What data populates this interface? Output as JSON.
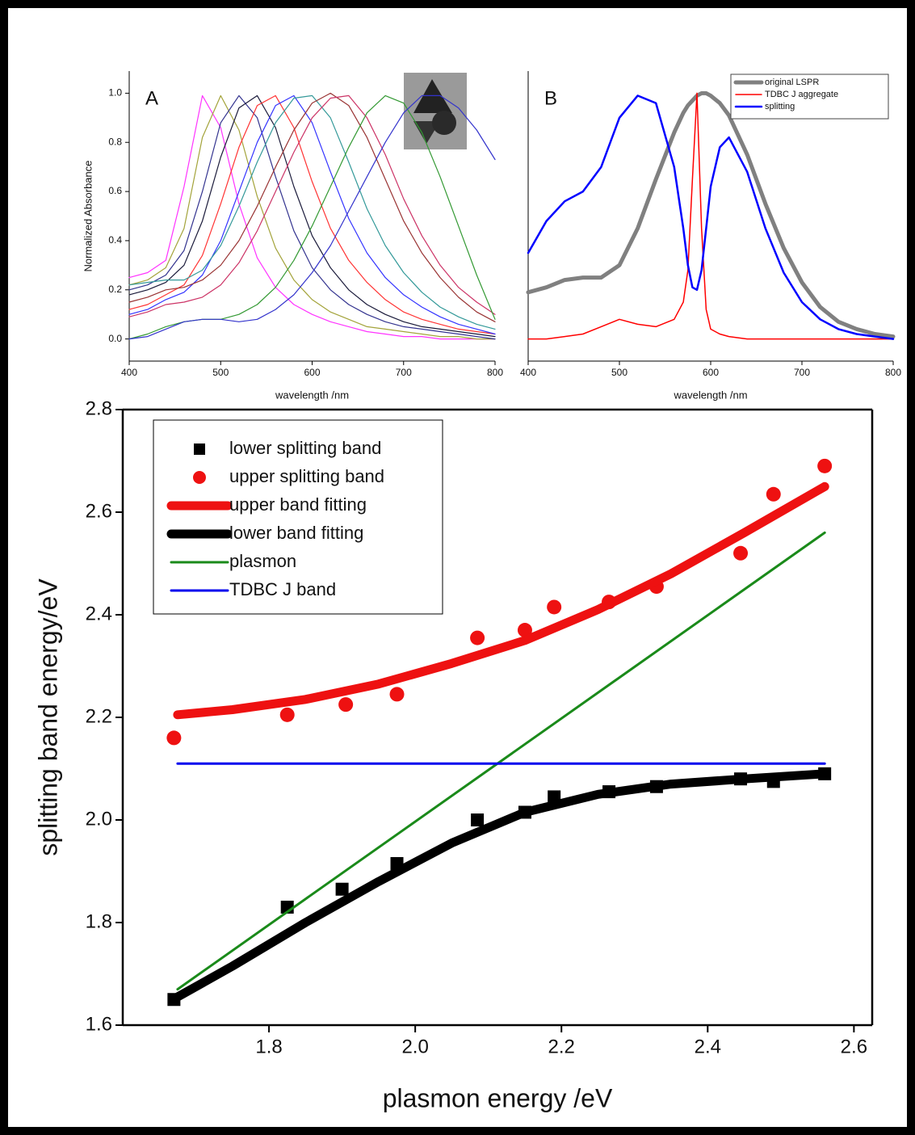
{
  "chart_data": [
    {
      "type": "line",
      "panel_label": "A",
      "xlabel": "wavelength /nm",
      "ylabel": "Normalized Absorbance",
      "x": [
        400,
        420,
        440,
        460,
        480,
        500,
        520,
        540,
        560,
        580,
        600,
        620,
        640,
        660,
        680,
        700,
        720,
        740,
        760,
        780,
        800
      ],
      "xlim": [
        400,
        800
      ],
      "xticks": [
        400,
        500,
        600,
        700,
        800
      ],
      "ylim": [
        -0.09,
        1.09
      ],
      "yticks": [
        {
          "value": 0,
          "label": "0.0"
        },
        0.2,
        0.4,
        0.6,
        0.8,
        {
          "value": 1,
          "label": "1.0"
        }
      ],
      "series": [
        {
          "color": "#ff33ff",
          "values": [
            0.25,
            0.27,
            0.32,
            0.62,
            0.99,
            0.86,
            0.55,
            0.33,
            0.21,
            0.14,
            0.1,
            0.07,
            0.05,
            0.03,
            0.02,
            0.01,
            0.01,
            0,
            0,
            0,
            0
          ]
        },
        {
          "color": "#a3a33a",
          "values": [
            0.22,
            0.24,
            0.29,
            0.45,
            0.82,
            0.99,
            0.85,
            0.58,
            0.37,
            0.24,
            0.16,
            0.11,
            0.08,
            0.05,
            0.04,
            0.03,
            0.02,
            0.01,
            0.01,
            0,
            0
          ]
        },
        {
          "color": "#33338f",
          "values": [
            0.2,
            0.22,
            0.26,
            0.36,
            0.6,
            0.88,
            0.99,
            0.9,
            0.66,
            0.44,
            0.29,
            0.2,
            0.14,
            0.1,
            0.07,
            0.05,
            0.04,
            0.03,
            0.02,
            0.01,
            0
          ]
        },
        {
          "color": "#1a1a3a",
          "values": [
            0.18,
            0.2,
            0.23,
            0.3,
            0.48,
            0.74,
            0.94,
            0.99,
            0.86,
            0.62,
            0.42,
            0.29,
            0.2,
            0.14,
            0.1,
            0.07,
            0.05,
            0.04,
            0.03,
            0.02,
            0.01
          ]
        },
        {
          "color": "#ff3333",
          "values": [
            0.12,
            0.14,
            0.18,
            0.22,
            0.34,
            0.55,
            0.78,
            0.95,
            0.99,
            0.86,
            0.64,
            0.45,
            0.32,
            0.23,
            0.16,
            0.11,
            0.08,
            0.06,
            0.04,
            0.03,
            0.02
          ]
        },
        {
          "color": "#3333ff",
          "values": [
            0.1,
            0.12,
            0.16,
            0.19,
            0.26,
            0.4,
            0.6,
            0.8,
            0.95,
            0.99,
            0.88,
            0.68,
            0.49,
            0.35,
            0.25,
            0.18,
            0.13,
            0.09,
            0.06,
            0.04,
            0.02
          ]
        },
        {
          "color": "#339999",
          "values": [
            0.22,
            0.23,
            0.24,
            0.24,
            0.28,
            0.38,
            0.54,
            0.72,
            0.88,
            0.98,
            0.99,
            0.9,
            0.72,
            0.53,
            0.38,
            0.27,
            0.19,
            0.13,
            0.09,
            0.06,
            0.04
          ]
        },
        {
          "color": "#993333",
          "values": [
            0.15,
            0.17,
            0.2,
            0.21,
            0.24,
            0.3,
            0.4,
            0.54,
            0.7,
            0.85,
            0.96,
            1.0,
            0.95,
            0.82,
            0.65,
            0.48,
            0.35,
            0.25,
            0.17,
            0.11,
            0.07
          ]
        },
        {
          "color": "#cc3366",
          "values": [
            0.09,
            0.11,
            0.14,
            0.15,
            0.17,
            0.22,
            0.31,
            0.44,
            0.6,
            0.76,
            0.9,
            0.98,
            0.99,
            0.9,
            0.75,
            0.57,
            0.42,
            0.3,
            0.21,
            0.15,
            0.1
          ]
        },
        {
          "color": "#339933",
          "values": [
            0,
            0.02,
            0.05,
            0.07,
            0.08,
            0.08,
            0.1,
            0.14,
            0.21,
            0.32,
            0.46,
            0.62,
            0.78,
            0.92,
            0.99,
            0.96,
            0.84,
            0.66,
            0.46,
            0.26,
            0.08
          ]
        },
        {
          "color": "#3333cc",
          "values": [
            0,
            0.01,
            0.04,
            0.07,
            0.08,
            0.08,
            0.07,
            0.08,
            0.12,
            0.18,
            0.27,
            0.38,
            0.52,
            0.66,
            0.8,
            0.92,
            0.99,
            0.99,
            0.94,
            0.85,
            0.73
          ]
        }
      ]
    },
    {
      "type": "line",
      "panel_label": "B",
      "xlabel": "wavelength /nm",
      "legend": "upper-right",
      "x": [
        400,
        420,
        440,
        460,
        480,
        500,
        520,
        540,
        560,
        570,
        575,
        580,
        585,
        590,
        595,
        600,
        610,
        620,
        640,
        660,
        680,
        700,
        720,
        740,
        760,
        780,
        800
      ],
      "xlim": [
        400,
        800
      ],
      "xticks": [
        400,
        500,
        600,
        700,
        800
      ],
      "ylim": [
        -0.09,
        1.09
      ],
      "series": [
        {
          "name": "original LSPR",
          "color": "#808080",
          "line_width": 5,
          "values": [
            0.19,
            0.21,
            0.24,
            0.25,
            0.25,
            0.3,
            0.45,
            0.65,
            0.84,
            0.92,
            0.95,
            0.97,
            0.99,
            1.0,
            1.0,
            0.99,
            0.96,
            0.91,
            0.75,
            0.55,
            0.37,
            0.23,
            0.13,
            0.07,
            0.04,
            0.02,
            0.01
          ]
        },
        {
          "name": "TDBC J aggregate",
          "color": "#ff0000",
          "line_width": 1.5,
          "values": [
            0,
            0,
            0.01,
            0.02,
            0.05,
            0.08,
            0.06,
            0.05,
            0.08,
            0.15,
            0.28,
            0.65,
            1.0,
            0.45,
            0.12,
            0.04,
            0.02,
            0.01,
            0,
            0,
            0,
            0,
            0,
            0,
            0,
            0,
            0
          ]
        },
        {
          "name": "splitting",
          "color": "#0000ff",
          "line_width": 2.5,
          "values": [
            0.35,
            0.48,
            0.56,
            0.6,
            0.7,
            0.9,
            0.99,
            0.96,
            0.7,
            0.45,
            0.3,
            0.21,
            0.2,
            0.28,
            0.45,
            0.62,
            0.78,
            0.82,
            0.68,
            0.45,
            0.27,
            0.15,
            0.08,
            0.04,
            0.02,
            0.01,
            0
          ]
        }
      ]
    },
    {
      "type": "scatter",
      "xlabel": "plasmon energy /eV",
      "ylabel": "splitting band energy/eV",
      "legend": "upper-left",
      "xlim": [
        1.6,
        2.625
      ],
      "xticks": [
        1.8,
        {
          "value": 2,
          "label": "2.0"
        },
        2.2,
        2.4,
        2.6
      ],
      "ylim": [
        1.6,
        2.8
      ],
      "yticks": [
        1.6,
        1.8,
        {
          "value": 2,
          "label": "2.0"
        },
        2.2,
        2.4,
        2.6,
        2.8
      ],
      "series": [
        {
          "name": "lower splitting band",
          "color": "#000000",
          "marker": "square",
          "x": [
            1.67,
            1.825,
            1.9,
            1.975,
            2.085,
            2.15,
            2.19,
            2.265,
            2.33,
            2.445,
            2.49,
            2.56
          ],
          "values": [
            1.65,
            1.83,
            1.865,
            1.915,
            2.0,
            2.015,
            2.045,
            2.055,
            2.065,
            2.08,
            2.075,
            2.09
          ]
        },
        {
          "name": "upper splitting band",
          "color": "#ee1111",
          "marker": "circle",
          "x": [
            1.67,
            1.825,
            1.905,
            1.975,
            2.085,
            2.15,
            2.19,
            2.265,
            2.33,
            2.445,
            2.49,
            2.56
          ],
          "values": [
            2.16,
            2.205,
            2.225,
            2.245,
            2.355,
            2.37,
            2.415,
            2.425,
            2.455,
            2.52,
            2.635,
            2.69
          ]
        },
        {
          "name": "upper band fitting",
          "color": "#ee1111",
          "marker": "line",
          "line_width": 11,
          "x": [
            1.675,
            1.75,
            1.85,
            1.95,
            2.05,
            2.15,
            2.25,
            2.35,
            2.45,
            2.56
          ],
          "values": [
            2.205,
            2.215,
            2.235,
            2.265,
            2.305,
            2.35,
            2.41,
            2.48,
            2.56,
            2.65
          ]
        },
        {
          "name": "lower band fitting",
          "color": "#000000",
          "marker": "line",
          "line_width": 11,
          "x": [
            1.675,
            1.75,
            1.85,
            1.95,
            2.05,
            2.15,
            2.25,
            2.35,
            2.45,
            2.56
          ],
          "values": [
            1.655,
            1.715,
            1.8,
            1.88,
            1.955,
            2.015,
            2.05,
            2.07,
            2.08,
            2.09
          ]
        },
        {
          "name": "plasmon",
          "color": "#1a8a1a",
          "marker": "line",
          "line_width": 3,
          "x": [
            1.675,
            2.56
          ],
          "values": [
            1.67,
            2.56
          ]
        },
        {
          "name": "TDBC J band",
          "color": "#0000ee",
          "marker": "line",
          "line_width": 3,
          "x": [
            1.675,
            2.56
          ],
          "values": [
            2.11,
            2.11
          ]
        }
      ]
    }
  ]
}
